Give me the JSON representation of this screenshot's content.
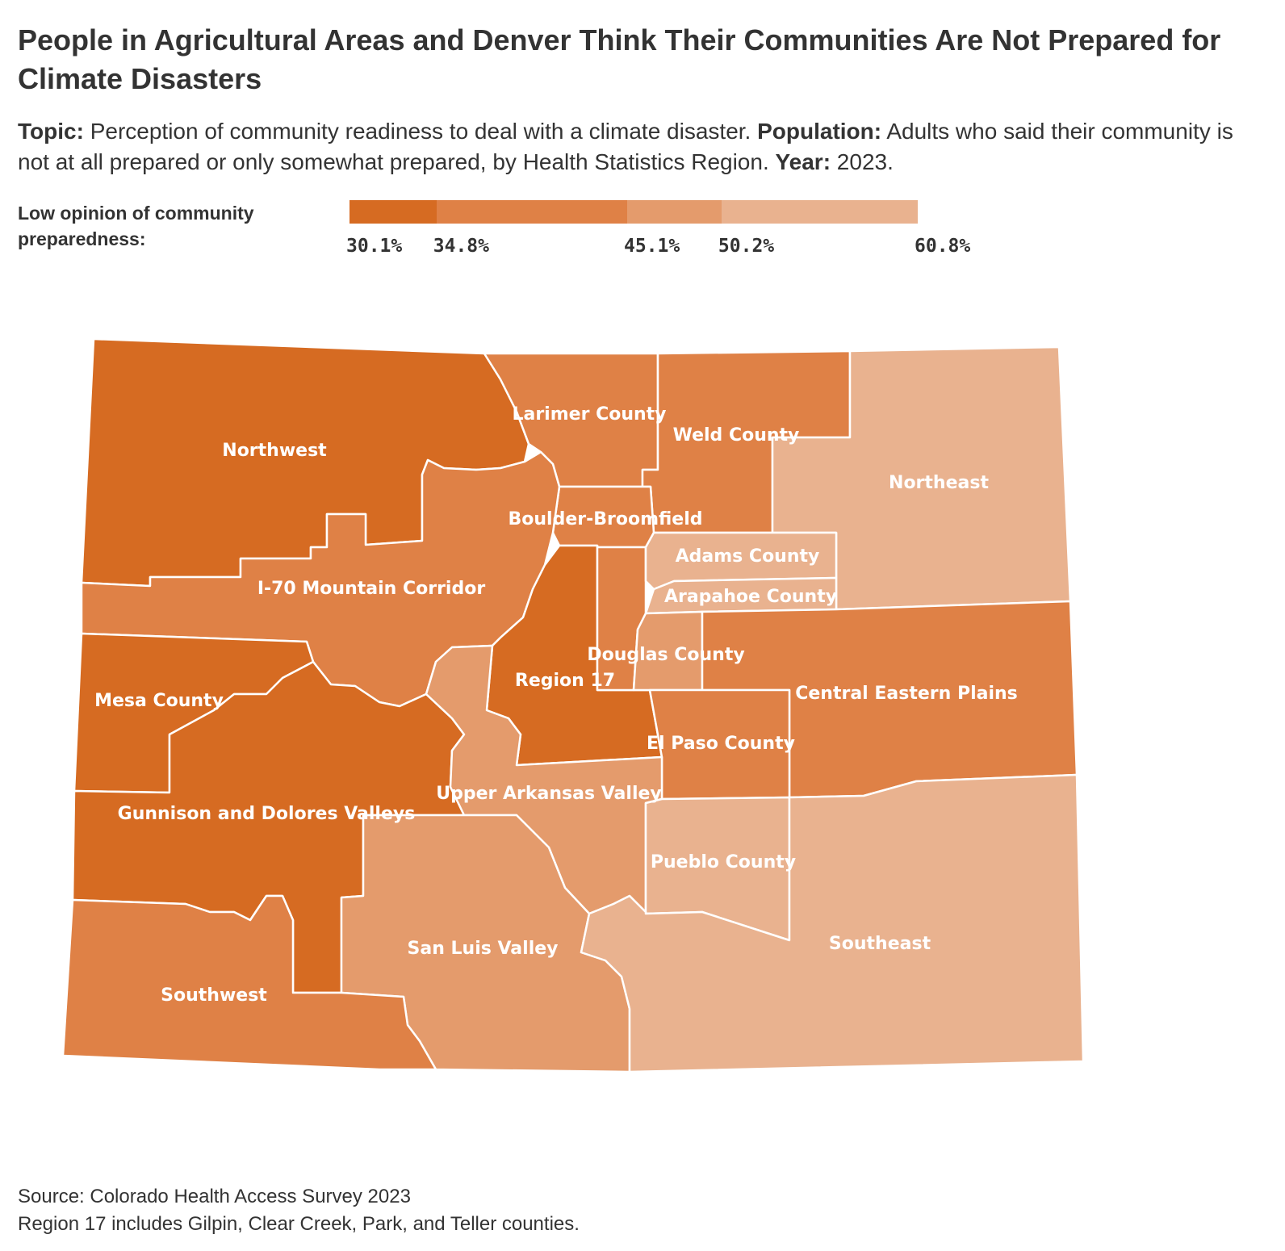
{
  "header": {
    "title": "People in Agricultural Areas and Denver Think Their Communities Are Not Prepared for Climate Disasters",
    "topic_label": "Topic:",
    "topic_text": "Perception of community readiness to deal with a climate disaster.",
    "population_label": "Population:",
    "population_text": "Adults who said their community is not at all prepared or only somewhat prepared, by Health Statistics Region.",
    "year_label": "Year:",
    "year_text": "2023."
  },
  "legend": {
    "title": "Low opinion of community preparedness:",
    "breaks": [
      "30.1%",
      "34.8%",
      "45.1%",
      "50.2%",
      "60.8%"
    ],
    "break_values": [
      30.1,
      34.8,
      45.1,
      50.2,
      60.8
    ],
    "colors": [
      "#d66b22",
      "#df8146",
      "#e49b6c",
      "#e9b28f"
    ]
  },
  "map": {
    "regions": [
      {
        "name": "Northwest",
        "class": 0
      },
      {
        "name": "Larimer County",
        "class": 1
      },
      {
        "name": "Weld County",
        "class": 1
      },
      {
        "name": "Northeast",
        "class": 3
      },
      {
        "name": "Boulder-Broomfield",
        "class": 1
      },
      {
        "name": "I-70 Mountain Corridor",
        "class": 1
      },
      {
        "name": "Adams County",
        "class": 3
      },
      {
        "name": "Arapahoe County",
        "class": 3
      },
      {
        "name": "Douglas County",
        "class": 2
      },
      {
        "name": "Region 17",
        "class": 0
      },
      {
        "name": "Central Eastern Plains",
        "class": 1
      },
      {
        "name": "Mesa County",
        "class": 0
      },
      {
        "name": "El Paso County",
        "class": 1
      },
      {
        "name": "Upper Arkansas Valley",
        "class": 2
      },
      {
        "name": "Gunnison and Dolores Valleys",
        "class": 0
      },
      {
        "name": "Pueblo County",
        "class": 3
      },
      {
        "name": "San Luis Valley",
        "class": 2
      },
      {
        "name": "Southeast",
        "class": 3
      },
      {
        "name": "Southwest",
        "class": 1
      }
    ]
  },
  "footer": {
    "source": "Source: Colorado Health Access Survey 2023",
    "note": "Region 17 includes Gilpin, Clear Creek, Park, and Teller counties."
  }
}
